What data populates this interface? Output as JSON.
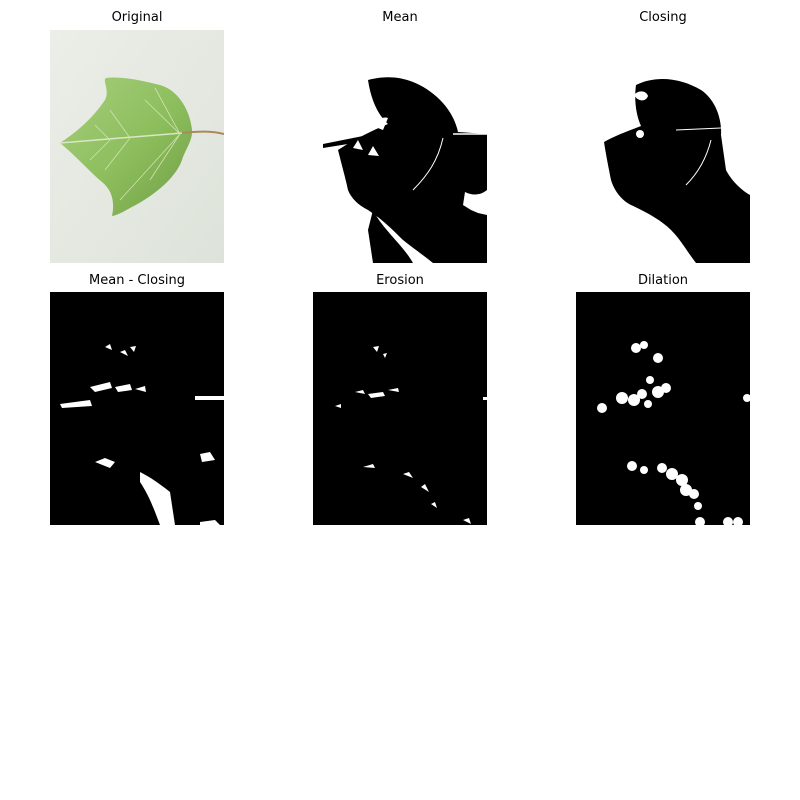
{
  "figure": {
    "panels": [
      {
        "title": "Original",
        "kind": "photo"
      },
      {
        "title": "Mean",
        "kind": "binary-mask"
      },
      {
        "title": "Closing",
        "kind": "binary-mask"
      },
      {
        "title": "Mean - Closing",
        "kind": "binary-mask"
      },
      {
        "title": "Erosion",
        "kind": "binary-mask"
      },
      {
        "title": "Dilation",
        "kind": "binary-mask"
      }
    ],
    "colors": {
      "photo_background": "#dfe4dc",
      "leaf": "#8fbe5e",
      "mask_black": "#000000",
      "mask_white": "#ffffff"
    }
  }
}
